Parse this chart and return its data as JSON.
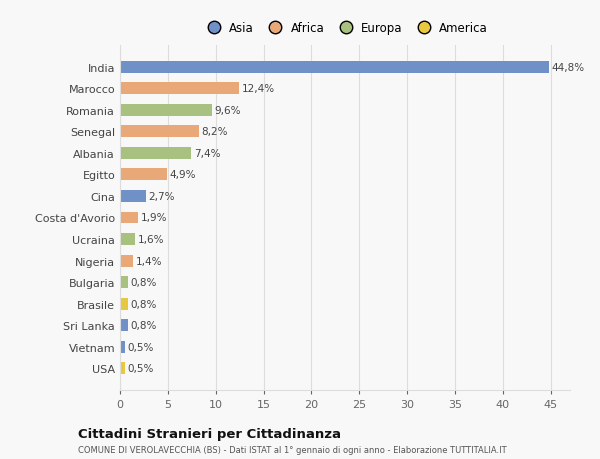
{
  "countries": [
    "India",
    "Marocco",
    "Romania",
    "Senegal",
    "Albania",
    "Egitto",
    "Cina",
    "Costa d'Avorio",
    "Ucraina",
    "Nigeria",
    "Bulgaria",
    "Brasile",
    "Sri Lanka",
    "Vietnam",
    "USA"
  ],
  "values": [
    44.8,
    12.4,
    9.6,
    8.2,
    7.4,
    4.9,
    2.7,
    1.9,
    1.6,
    1.4,
    0.8,
    0.8,
    0.8,
    0.5,
    0.5
  ],
  "labels": [
    "44,8%",
    "12,4%",
    "9,6%",
    "8,2%",
    "7,4%",
    "4,9%",
    "2,7%",
    "1,9%",
    "1,6%",
    "1,4%",
    "0,8%",
    "0,8%",
    "0,8%",
    "0,5%",
    "0,5%"
  ],
  "colors": [
    "#7090c8",
    "#e8a878",
    "#a8c080",
    "#e8a878",
    "#a8c080",
    "#e8a878",
    "#7090c8",
    "#e8a878",
    "#a8c080",
    "#e8a878",
    "#a8c080",
    "#e8c840",
    "#7090c8",
    "#7090c8",
    "#e8c840"
  ],
  "legend_labels": [
    "Asia",
    "Africa",
    "Europa",
    "America"
  ],
  "legend_colors": [
    "#7090c8",
    "#e8a878",
    "#a8c080",
    "#e8c840"
  ],
  "title": "Cittadini Stranieri per Cittadinanza",
  "subtitle": "COMUNE DI VEROLAVECCHIA (BS) - Dati ISTAT al 1° gennaio di ogni anno - Elaborazione TUTTITALIA.IT",
  "xlim": [
    0,
    47
  ],
  "xticks": [
    0,
    5,
    10,
    15,
    20,
    25,
    30,
    35,
    40,
    45
  ],
  "bg_color": "#f8f8f8",
  "grid_color": "#dddddd"
}
